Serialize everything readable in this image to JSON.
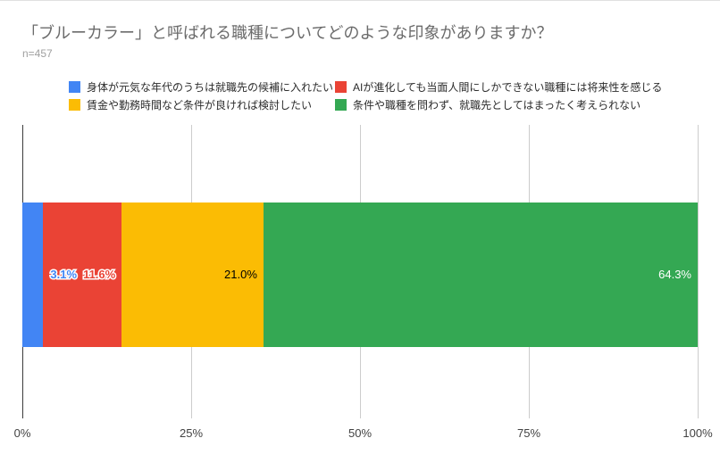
{
  "header": {
    "title": "「ブルーカラー」と呼ばれる職種についてどのような印象がありますか？",
    "subtitle": "n=457"
  },
  "chart_data": {
    "type": "bar",
    "orientation": "horizontal",
    "stacked": true,
    "title": "「ブルーカラー」と呼ばれる職種についてどのような印象がありますか？",
    "subtitle": "n=457",
    "sample_size": "n=457",
    "categories": [
      ""
    ],
    "series": [
      {
        "name": "身体が元気な年代のうちは就職先の候補に入れたい",
        "values": [
          3.1
        ],
        "color": "#4285F4"
      },
      {
        "name": "AIが進化しても当面人間にしかできない職種には将来性を感じる",
        "values": [
          11.6
        ],
        "color": "#EA4335"
      },
      {
        "name": "賃金や勤務時間など条件が良ければ検討したい",
        "values": [
          21.0
        ],
        "color": "#FBBC04"
      },
      {
        "name": "条件や職種を問わず、就職先としてはまったく考えられない",
        "values": [
          64.3
        ],
        "color": "#34A853"
      }
    ],
    "data_labels": [
      {
        "text": "3.1%",
        "style": "outlined",
        "color": "#4285F4",
        "placement": "outside"
      },
      {
        "text": "11.6%",
        "style": "outlined",
        "color": "#EA4335",
        "placement": "outside"
      },
      {
        "text": "21.0%",
        "style": "plain",
        "color": "#000000",
        "placement": "inside-end"
      },
      {
        "text": "64.3%",
        "style": "plain",
        "color": "#ffffff",
        "placement": "inside-end"
      }
    ],
    "x_axis": {
      "ticks": [
        "0%",
        "25%",
        "50%",
        "75%",
        "100%"
      ],
      "tick_values": [
        0,
        25,
        50,
        75,
        100
      ],
      "range": [
        0,
        100
      ]
    },
    "grid": true,
    "legend_position": "top",
    "axis_color": "#3c3c3c",
    "gridline_color": "#cccccc"
  }
}
